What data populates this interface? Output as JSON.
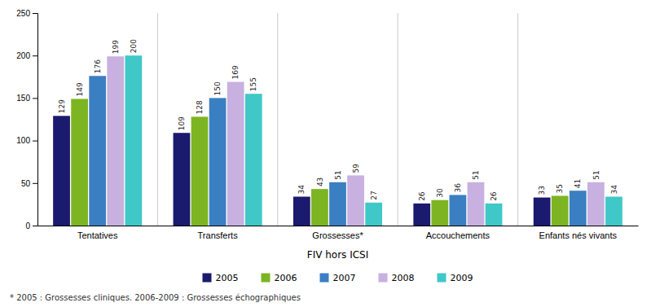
{
  "chart_data": {
    "type": "bar",
    "xlabel": "FIV hors ICSI",
    "categories": [
      "Tentatives",
      "Transferts",
      "Grossesses*",
      "Accouchements",
      "Enfants nés vivants"
    ],
    "series": [
      {
        "name": "2005",
        "color": "#1a1a6e",
        "values": [
          129,
          109,
          34,
          26,
          33
        ]
      },
      {
        "name": "2006",
        "color": "#7db522",
        "values": [
          149,
          128,
          43,
          30,
          35
        ]
      },
      {
        "name": "2007",
        "color": "#3a7fc1",
        "values": [
          176,
          150,
          51,
          36,
          41
        ]
      },
      {
        "name": "2008",
        "color": "#c8b0e0",
        "values": [
          199,
          169,
          59,
          51,
          51
        ]
      },
      {
        "name": "2009",
        "color": "#40c8c8",
        "values": [
          200,
          155,
          27,
          26,
          34
        ]
      }
    ],
    "ylim": [
      0,
      250
    ],
    "yticks": [
      0,
      50,
      100,
      150,
      200,
      250
    ],
    "grid": false,
    "legend": "bottom",
    "data_labels": true,
    "annotations": [
      "* 2005 : Grossesses cliniques. 2006-2009 : Grossesses échographiques"
    ]
  }
}
